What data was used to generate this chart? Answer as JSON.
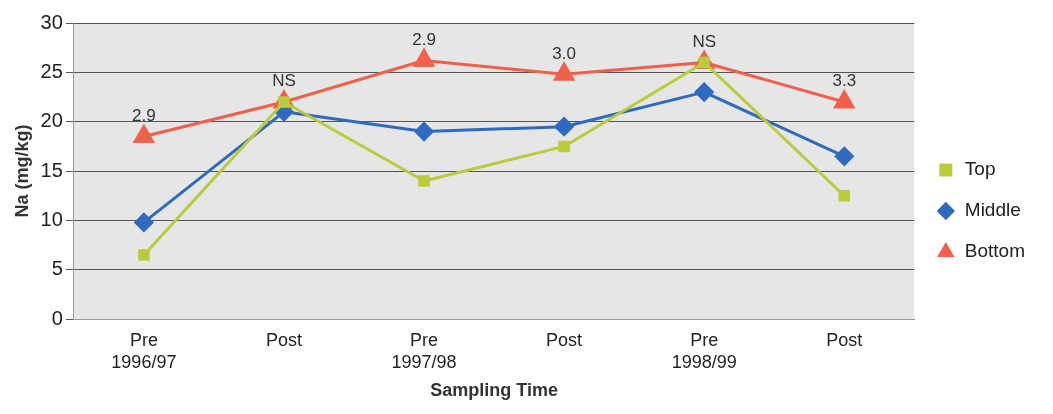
{
  "chart_data": {
    "type": "line",
    "xlabel": "Sampling Time",
    "ylabel": "Na (mg/kg)",
    "categories": [
      "Pre\n1996/97",
      "Post",
      "Pre\n1997/98",
      "Post",
      "Pre\n1998/99",
      "Post"
    ],
    "series": [
      {
        "name": "Top",
        "color": "#bccb3c",
        "marker": "square",
        "values": [
          6.5,
          22,
          14,
          17.5,
          26,
          12.5
        ]
      },
      {
        "name": "Middle",
        "color": "#2e6bc0",
        "marker": "diamond",
        "values": [
          9.8,
          21,
          19,
          19.5,
          23,
          16.5
        ]
      },
      {
        "name": "Bottom",
        "color": "#f0604a",
        "marker": "triangle",
        "values": [
          18.5,
          22,
          26.2,
          24.8,
          26,
          22
        ]
      }
    ],
    "annotations": [
      "2.9",
      "NS",
      "2.9",
      "3.0",
      "NS",
      "3.3"
    ],
    "ylim": [
      0,
      30
    ],
    "yticks": [
      0,
      5,
      10,
      15,
      20,
      25,
      30
    ],
    "grid": "y",
    "legend": "right",
    "line_style": "solid"
  }
}
